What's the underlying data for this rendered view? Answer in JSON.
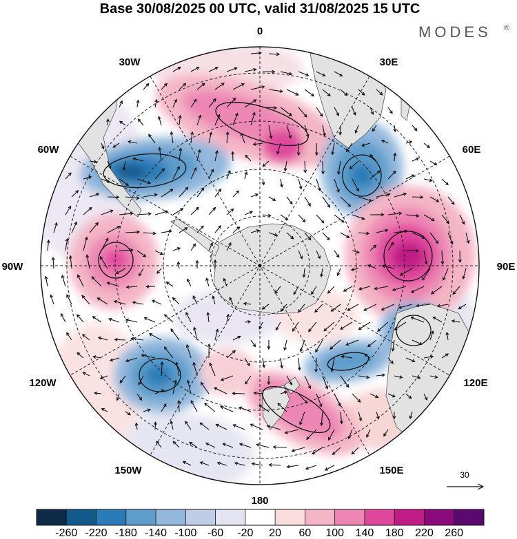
{
  "title": "Base 30/08/2025 00 UTC, valid 31/08/2025 15 UTC",
  "brand": {
    "name": "MODES",
    "mark": "®"
  },
  "map": {
    "projection": "south polar stereographic",
    "longitude_labels": {
      "lon_0": "0",
      "lon_30e": "30E",
      "lon_60e": "60E",
      "lon_90e": "90E",
      "lon_120e": "120E",
      "lon_150e": "150E",
      "lon_180": "180",
      "lon_150w": "150W",
      "lon_120w": "120W",
      "lon_90w": "90W",
      "lon_60w": "60W",
      "lon_30w": "30W"
    },
    "reference_vector": {
      "label": "30"
    }
  },
  "colorbar": {
    "ticks": [
      "-260",
      "-220",
      "-180",
      "-140",
      "-100",
      "-60",
      "-20",
      "20",
      "60",
      "100",
      "140",
      "180",
      "220",
      "260"
    ],
    "colors": [
      "#0d2a47",
      "#135a8c",
      "#2b7bb8",
      "#5d9ccb",
      "#93b8dc",
      "#c0cde6",
      "#e3e3f1",
      "#ffffff",
      "#f9dcdc",
      "#f4b6c6",
      "#ec87b4",
      "#e0489d",
      "#c01c86",
      "#8a0a7a",
      "#5a0a6e"
    ]
  },
  "colors": {
    "land": "#e4e4e4",
    "coast": "#444444",
    "grid": "#222222"
  }
}
